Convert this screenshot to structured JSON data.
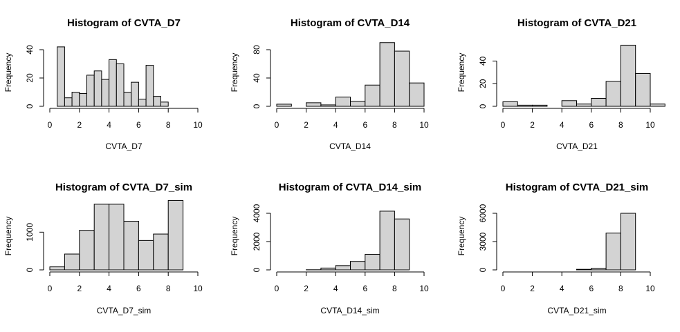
{
  "chart_data": [
    {
      "type": "bar",
      "title": "Histogram of CVTA_D7",
      "xlabel": "CVTA_D7",
      "ylabel": "Frequency",
      "xlim": [
        0,
        10
      ],
      "ylim": [
        0,
        40
      ],
      "xticks": [
        0,
        2,
        4,
        6,
        8,
        10
      ],
      "yticks": [
        0,
        20,
        40
      ],
      "bin_edges": [
        0.5,
        1.0,
        1.5,
        2.0,
        2.5,
        3.0,
        3.5,
        4.0,
        4.5,
        5.0,
        5.5,
        6.0,
        6.5,
        7.0,
        7.5,
        8.0
      ],
      "values": [
        42,
        6,
        10,
        9,
        22,
        25,
        19,
        33,
        30,
        10,
        17,
        5,
        29,
        7,
        3
      ]
    },
    {
      "type": "bar",
      "title": "Histogram of CVTA_D14",
      "xlabel": "CVTA_D14",
      "ylabel": "Frequency",
      "xlim": [
        0,
        10
      ],
      "ylim": [
        0,
        80
      ],
      "xticks": [
        0,
        2,
        4,
        6,
        8,
        10
      ],
      "yticks": [
        0,
        40,
        80
      ],
      "bin_edges": [
        0,
        1,
        2,
        3,
        4,
        5,
        6,
        7,
        8,
        9,
        10
      ],
      "values": [
        3,
        0,
        5,
        2,
        13,
        7,
        30,
        90,
        78,
        33
      ]
    },
    {
      "type": "bar",
      "title": "Histogram of CVTA_D21",
      "xlabel": "CVTA_D21",
      "ylabel": "Frequency",
      "xlim": [
        0,
        10
      ],
      "ylim": [
        0,
        50
      ],
      "xticks": [
        0,
        2,
        4,
        6,
        8,
        10
      ],
      "yticks": [
        0,
        20,
        40
      ],
      "bin_edges": [
        0,
        1,
        2,
        3,
        4,
        5,
        6,
        7,
        8,
        9,
        10,
        11
      ],
      "values": [
        4,
        1,
        1,
        0,
        5,
        2,
        7,
        22,
        54,
        29,
        2
      ]
    },
    {
      "type": "bar",
      "title": "Histogram of CVTA_D7_sim",
      "xlabel": "CVTA_D7_sim",
      "ylabel": "Frequency",
      "xlim": [
        0,
        10
      ],
      "ylim": [
        0,
        1500
      ],
      "xticks": [
        0,
        2,
        4,
        6,
        8,
        10
      ],
      "yticks": [
        0,
        1000
      ],
      "bin_edges": [
        0,
        1,
        2,
        3,
        4,
        5,
        6,
        7,
        8,
        9
      ],
      "values": [
        80,
        420,
        1050,
        1740,
        1740,
        1290,
        780,
        950,
        1840
      ]
    },
    {
      "type": "bar",
      "title": "Histogram of CVTA_D14_sim",
      "xlabel": "CVTA_D14_sim",
      "ylabel": "Frequency",
      "xlim": [
        0,
        10
      ],
      "ylim": [
        0,
        4000
      ],
      "xticks": [
        0,
        2,
        4,
        6,
        8,
        10
      ],
      "yticks": [
        0,
        2000,
        4000
      ],
      "bin_edges": [
        0,
        1,
        2,
        3,
        4,
        5,
        6,
        7,
        8,
        9
      ],
      "values": [
        0,
        0,
        10,
        130,
        300,
        600,
        1100,
        4150,
        3600
      ]
    },
    {
      "type": "bar",
      "title": "Histogram of CVTA_D21_sim",
      "xlabel": "CVTA_D21_sim",
      "ylabel": "Frequency",
      "xlim": [
        0,
        10
      ],
      "ylim": [
        0,
        6000
      ],
      "xticks": [
        0,
        2,
        4,
        6,
        8,
        10
      ],
      "yticks": [
        0,
        3000,
        6000
      ],
      "bin_edges": [
        0,
        1,
        2,
        3,
        4,
        5,
        6,
        7,
        8,
        9
      ],
      "values": [
        0,
        0,
        0,
        0,
        0,
        60,
        180,
        3900,
        6000
      ]
    }
  ]
}
